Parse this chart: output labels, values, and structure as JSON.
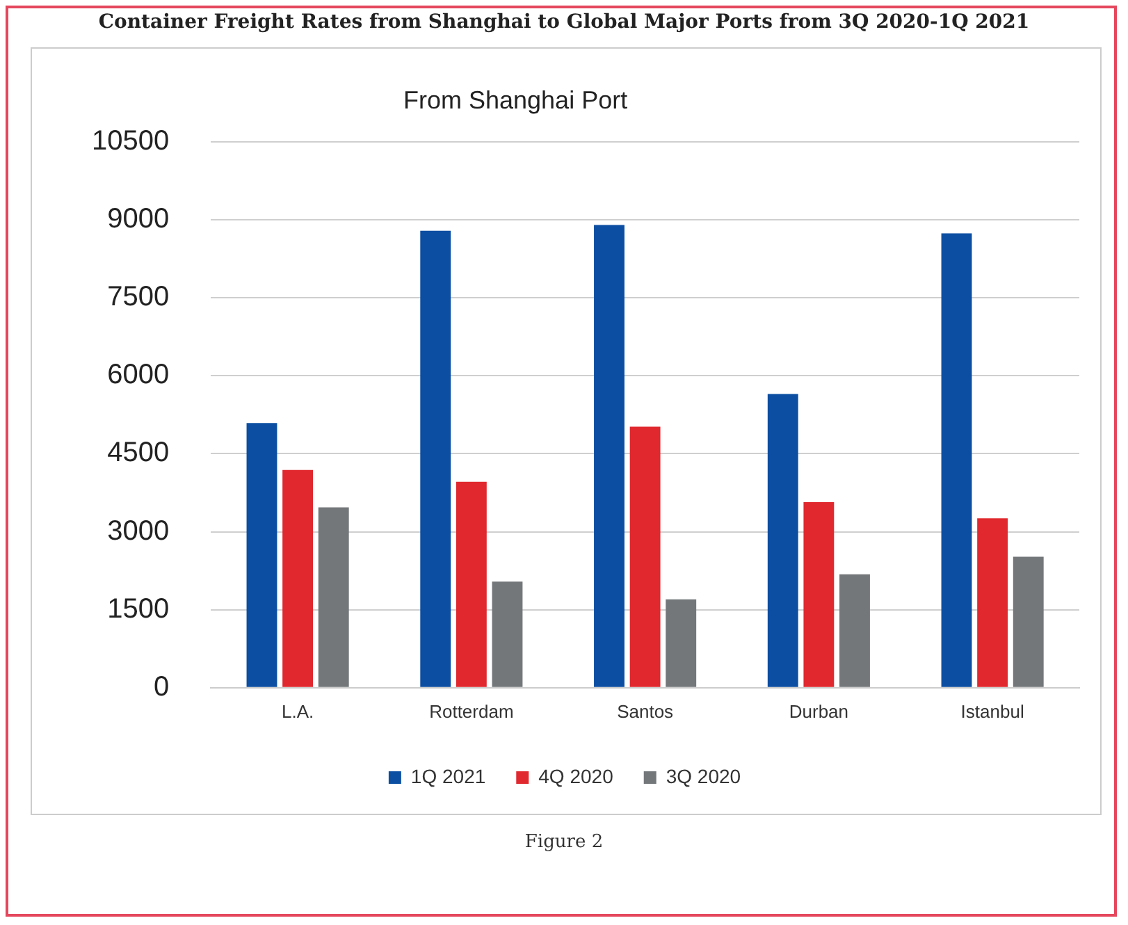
{
  "chart_data": {
    "type": "bar",
    "title": "Container Freight Rates from Shanghai to Global Major Ports from 3Q 2020-1Q 2021",
    "subtitle": "From Shanghai Port",
    "categories": [
      "L.A.",
      "Rotterdam",
      "Santos",
      "Durban",
      "Istanbul"
    ],
    "series": [
      {
        "name": "1Q 2021",
        "color": "#0b4ea2",
        "values": [
          5090,
          8790,
          8900,
          5650,
          8740
        ]
      },
      {
        "name": "4Q 2020",
        "color": "#e0282e",
        "values": [
          4190,
          3960,
          5020,
          3570,
          3260
        ]
      },
      {
        "name": "3Q 2020",
        "color": "#73777a",
        "values": [
          3470,
          2040,
          1700,
          2180,
          2520
        ]
      }
    ],
    "ylim": [
      0,
      10500
    ],
    "yticks": [
      0,
      1500,
      3000,
      4500,
      6000,
      7500,
      9000,
      10500
    ],
    "grid": "y",
    "legend": "bottom",
    "annotations": [
      "Figure 2"
    ]
  }
}
